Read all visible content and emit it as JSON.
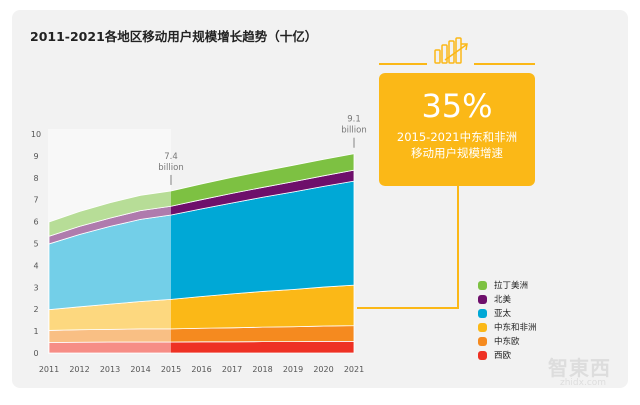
{
  "title": "2011-2021各地区移动用户规模增长趋势（十亿）",
  "callout": {
    "value": "35%",
    "line1": "2015-2021中东和非洲",
    "line2": "移动用户规模增速",
    "color": "#fbb817"
  },
  "watermark": {
    "text": "智東西",
    "url_text": "zhidx.com"
  },
  "chart_data": {
    "type": "area",
    "stacked": true,
    "title": "2011-2021各地区移动用户规模增长趋势（十亿）",
    "x": [
      "2011",
      "2012",
      "2013",
      "2014",
      "2015",
      "2016",
      "2017",
      "2018",
      "2019",
      "2020",
      "2021"
    ],
    "yticks": [
      "0",
      "1",
      "2",
      "3",
      "4",
      "5",
      "6",
      "7",
      "8",
      "9",
      "10"
    ],
    "ylim": [
      0,
      10
    ],
    "grid": false,
    "legend_position": "right",
    "historical_faded_until": "2015",
    "annotations": [
      {
        "x": "2015",
        "value": "7.4",
        "unit": "billion"
      },
      {
        "x": "2021",
        "value": "9.1",
        "unit": "billion"
      }
    ],
    "series": [
      {
        "name": "西欧",
        "color": "#ee3124",
        "values": [
          0.48,
          0.49,
          0.5,
          0.5,
          0.5,
          0.51,
          0.51,
          0.52,
          0.52,
          0.53,
          0.53
        ]
      },
      {
        "name": "中东欧",
        "color": "#f58a1f",
        "values": [
          0.55,
          0.57,
          0.58,
          0.6,
          0.6,
          0.62,
          0.64,
          0.66,
          0.68,
          0.7,
          0.72
        ]
      },
      {
        "name": "中东和非洲",
        "color": "#fbb817",
        "values": [
          0.95,
          1.05,
          1.15,
          1.25,
          1.35,
          1.45,
          1.55,
          1.63,
          1.7,
          1.78,
          1.85
        ]
      },
      {
        "name": "亚太",
        "color": "#00a8d6",
        "values": [
          3.0,
          3.3,
          3.55,
          3.75,
          3.85,
          4.0,
          4.15,
          4.3,
          4.45,
          4.6,
          4.75
        ]
      },
      {
        "name": "北美",
        "color": "#6e0f6b",
        "values": [
          0.35,
          0.37,
          0.38,
          0.4,
          0.4,
          0.42,
          0.44,
          0.45,
          0.47,
          0.48,
          0.5
        ]
      },
      {
        "name": "拉丁美洲",
        "color": "#7dc142",
        "values": [
          0.65,
          0.68,
          0.7,
          0.7,
          0.7,
          0.72,
          0.73,
          0.74,
          0.75,
          0.75,
          0.75
        ]
      }
    ]
  }
}
